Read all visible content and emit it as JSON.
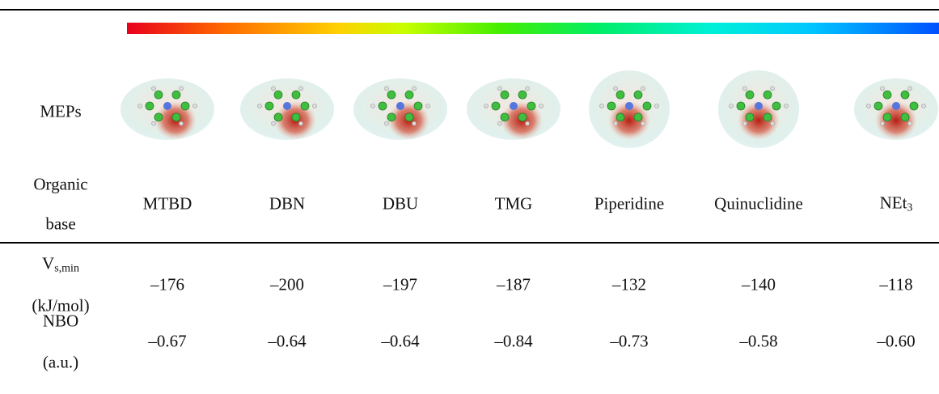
{
  "table": {
    "meps_label": "MEPs",
    "base_label": [
      "Organic",
      "base"
    ],
    "bases": [
      "MTBD",
      "DBN",
      "DBU",
      "TMG",
      "Piperidine",
      "Quinuclidine",
      {
        "text": "NEt",
        "sub": "3"
      }
    ],
    "vs_label": {
      "symbol": "V",
      "sub": "s,min",
      "unit": "(kJ/mol)"
    },
    "vs_values": [
      "–176",
      "–200",
      "–197",
      "–187",
      "–132",
      "–140",
      "–118"
    ],
    "nbo_label": [
      "NBO",
      "(a.u.)"
    ],
    "nbo_values": [
      "–0.67",
      "–0.64",
      "–0.64",
      "–0.84",
      "–0.73",
      "–0.58",
      "–0.60"
    ]
  }
}
